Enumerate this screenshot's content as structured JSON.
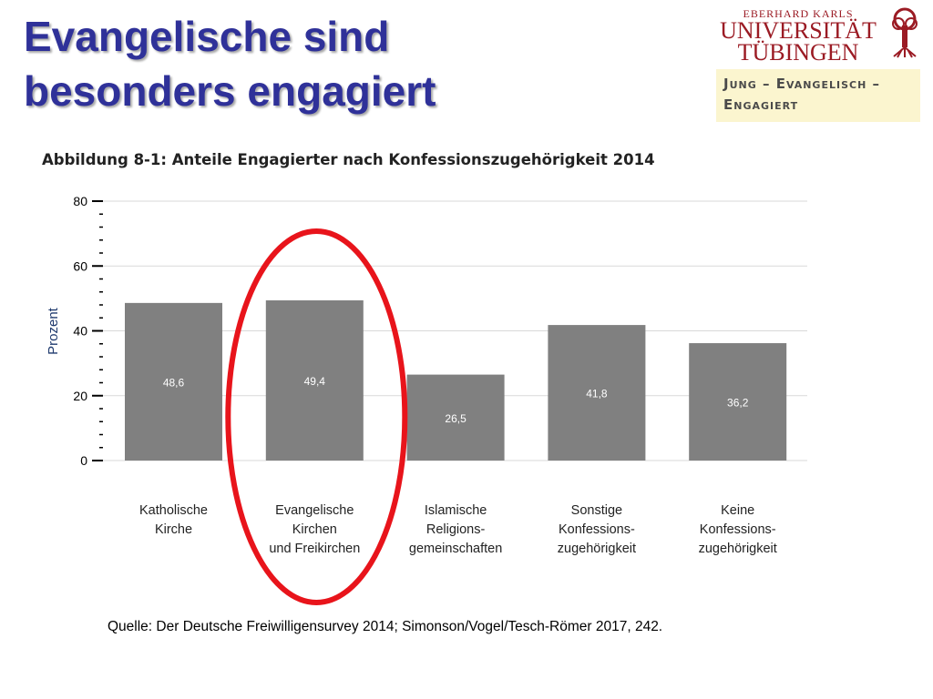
{
  "slide": {
    "title_lines": [
      "Evangelische sind",
      "besonders engagiert"
    ]
  },
  "logo": {
    "line_small": "EBERHARD KARLS",
    "line_1": "UNIVERSITÄT",
    "line_2": "TÜBINGEN",
    "icon": "tree-seal-icon"
  },
  "banner": {
    "line_1": "Jung – Evangelisch –",
    "line_2": "Engagiert"
  },
  "chart_data": {
    "type": "bar",
    "title": "Abbildung 8-1: Anteile Engagierter nach Konfessionszugehörigkeit 2014",
    "xlabel": "",
    "ylabel": "Prozent",
    "ylim": [
      0,
      80
    ],
    "yticks": [
      0,
      20,
      40,
      60,
      80
    ],
    "grid": true,
    "categories": [
      [
        "Katholische",
        "Kirche"
      ],
      [
        "Evangelische",
        "Kirchen",
        "und Freikirchen"
      ],
      [
        "Islamische",
        "Religions-",
        "gemeinschaften"
      ],
      [
        "Sonstige",
        "Konfessions-",
        "zugehörigkeit"
      ],
      [
        "Keine",
        "Konfessions-",
        "zugehörigkeit"
      ]
    ],
    "values": [
      48.6,
      49.4,
      26.5,
      41.8,
      36.2
    ],
    "value_labels": [
      "48,6",
      "49,4",
      "26,5",
      "41,8",
      "36,2"
    ],
    "highlighted_category_index": 1
  },
  "colors": {
    "title": "#2f3199",
    "bar": "#808080",
    "bar_label": "#ffffff",
    "highlight_ellipse": "#e8141b",
    "grid": "#d9d9d9",
    "logo": "#9b1b24",
    "banner_bg": "#fbf5cf"
  },
  "source": {
    "text": "Quelle: Der Deutsche Freiwilligensurvey 2014; Simonson/Vogel/Tesch-Römer 2017, 242."
  }
}
